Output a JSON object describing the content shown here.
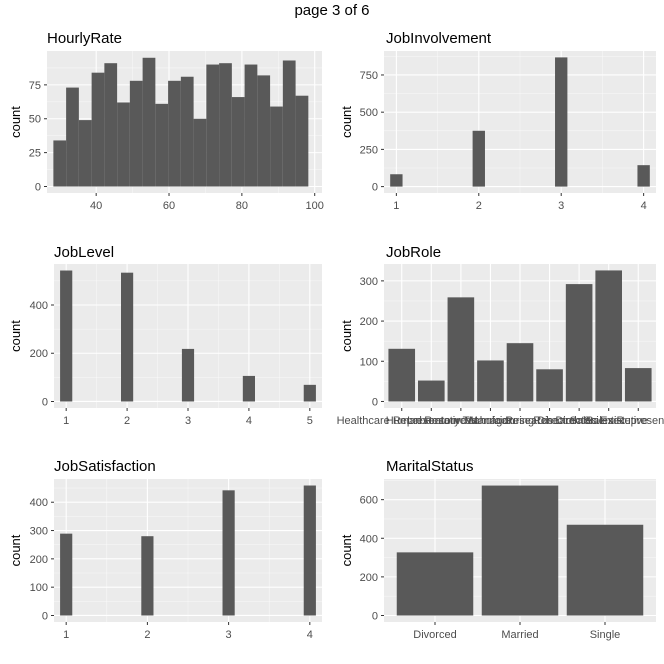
{
  "page_title": "page 3 of 6",
  "colors": {
    "panel_bg": "#ebebeb",
    "grid_major": "#ffffff",
    "bar_fill": "#595959",
    "axis_text": "#4d4d4d"
  },
  "chart_data": [
    {
      "type": "bar",
      "title": "HourlyRate",
      "ylabel": "count",
      "xlabel": "",
      "x": [
        30,
        33.5,
        37,
        40.5,
        44,
        47.5,
        51,
        54.5,
        58,
        61.5,
        65,
        68.5,
        72,
        75.5,
        79,
        82.5,
        86,
        89.5,
        93,
        96.5,
        100
      ],
      "values": [
        34,
        73,
        49,
        84,
        91,
        62,
        78,
        95,
        61,
        78,
        81,
        50,
        90,
        91,
        66,
        90,
        82,
        59,
        93,
        67,
        0
      ],
      "xticks": [
        40,
        60,
        80,
        100
      ],
      "yticks": [
        0,
        25,
        50,
        75
      ],
      "xlim": [
        26.5,
        102
      ],
      "ylim": [
        -4.8,
        100
      ],
      "bar_width": 3.5,
      "grid": true
    },
    {
      "type": "bar",
      "title": "JobInvolvement",
      "ylabel": "count",
      "xlabel": "",
      "x": [
        1,
        2,
        3,
        4
      ],
      "values": [
        83,
        375,
        868,
        144
      ],
      "xticks": [
        1,
        2,
        3,
        4
      ],
      "yticks": [
        0,
        250,
        500,
        750
      ],
      "xlim": [
        0.85,
        4.15
      ],
      "ylim": [
        -43,
        911
      ],
      "bar_width": 0.15,
      "grid": true
    },
    {
      "type": "bar",
      "title": "JobLevel",
      "ylabel": "count",
      "xlabel": "",
      "x": [
        1,
        2,
        3,
        4,
        5
      ],
      "values": [
        543,
        534,
        218,
        106,
        69
      ],
      "xticks": [
        1,
        2,
        3,
        4,
        5
      ],
      "yticks": [
        0,
        200,
        400
      ],
      "xlim": [
        0.8,
        5.2
      ],
      "ylim": [
        -27,
        570
      ],
      "bar_width": 0.2,
      "grid": true
    },
    {
      "type": "bar",
      "title": "JobRole",
      "ylabel": "count",
      "xlabel": "",
      "categories": [
        "Healthcare Representative",
        "Human Resources",
        "Laboratory Technician",
        "Manager",
        "Manufacturing Director",
        "Research Director",
        "Research Scientist",
        "Sales Executive",
        "Sales Representative"
      ],
      "values": [
        131,
        52,
        259,
        102,
        145,
        80,
        292,
        326,
        83
      ],
      "yticks": [
        0,
        100,
        200,
        300
      ],
      "ylim": [
        -16.3,
        342
      ],
      "bar_width": 0.9,
      "grid": true
    },
    {
      "type": "bar",
      "title": "JobSatisfaction",
      "ylabel": "count",
      "xlabel": "",
      "x": [
        1,
        2,
        3,
        4
      ],
      "values": [
        289,
        280,
        442,
        459
      ],
      "xticks": [
        1,
        2,
        3,
        4
      ],
      "yticks": [
        0,
        100,
        200,
        300,
        400
      ],
      "xlim": [
        0.85,
        4.15
      ],
      "ylim": [
        -23,
        482
      ],
      "bar_width": 0.15,
      "grid": true
    },
    {
      "type": "bar",
      "title": "MaritalStatus",
      "ylabel": "count",
      "xlabel": "",
      "categories": [
        "Divorced",
        "Married",
        "Single"
      ],
      "values": [
        327,
        673,
        470
      ],
      "yticks": [
        0,
        200,
        400,
        600
      ],
      "ylim": [
        -33.7,
        707
      ],
      "bar_width": 0.9,
      "grid": true
    }
  ]
}
